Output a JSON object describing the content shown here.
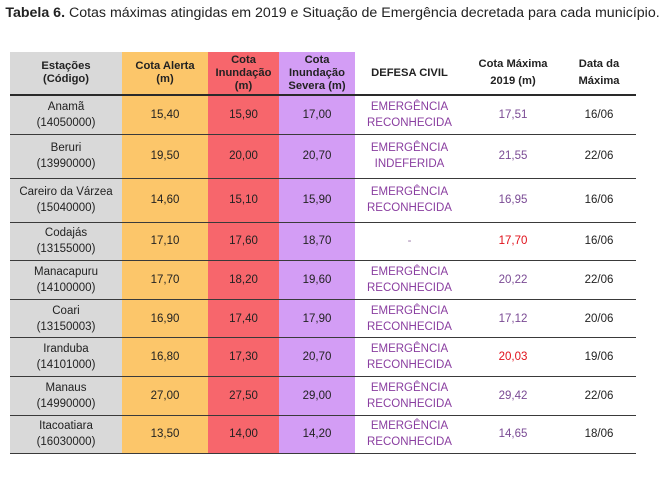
{
  "caption": {
    "label": "Tabela 6.",
    "text": " Cotas máximas atingidas em 2019 e Situação de Emergência decretada para cada município."
  },
  "headers": {
    "estacoes": [
      "Estações",
      "(Código)"
    ],
    "alerta": [
      "Cota Alerta",
      "(m)"
    ],
    "inundacao": [
      "Cota",
      "Inundação",
      "(m)"
    ],
    "severa": [
      "Cota",
      "Inundação",
      "Severa (m)"
    ],
    "defesa": "DEFESA CIVIL",
    "maxima": [
      "Cota Máxima",
      "2019 (m)"
    ],
    "data": [
      "Data da",
      "Máxima"
    ]
  },
  "colors": {
    "estacoes_bg": "#d9d9d9",
    "alerta_bg": "#fcc66a",
    "inundacao_bg": "#f7666c",
    "severa_bg": "#d39df5",
    "defesa_text": "#8a3ea0",
    "max_over_threshold": "#e0101a"
  },
  "rows": [
    {
      "nome": "Anamã",
      "codigo": "(14050000)",
      "alerta": "15,40",
      "inundacao": "15,90",
      "severa": "17,00",
      "defesa": [
        "EMERGÊNCIA",
        "RECONHECIDA"
      ],
      "maxima": "17,51",
      "maxima_red": false,
      "data": "16/06"
    },
    {
      "nome": "Beruri",
      "codigo": "(13990000)",
      "alerta": "19,50",
      "inundacao": "20,00",
      "severa": "20,70",
      "defesa": [
        "EMERGÊNCIA",
        "INDEFERIDA"
      ],
      "maxima": "21,55",
      "maxima_red": false,
      "data": "22/06"
    },
    {
      "nome": "Careiro da Várzea",
      "codigo": "(15040000)",
      "alerta": "14,60",
      "inundacao": "15,10",
      "severa": "15,90",
      "defesa": [
        "EMERGÊNCIA",
        "RECONHECIDA"
      ],
      "maxima": "16,95",
      "maxima_red": false,
      "data": "16/06"
    },
    {
      "nome": "Codajás",
      "codigo": "(13155000)",
      "alerta": "17,10",
      "inundacao": "17,60",
      "severa": "18,70",
      "defesa": [
        "-"
      ],
      "maxima": "17,70",
      "maxima_red": true,
      "data": "16/06"
    },
    {
      "nome": "Manacapuru",
      "codigo": "(14100000)",
      "alerta": "17,70",
      "inundacao": "18,20",
      "severa": "19,60",
      "defesa": [
        "EMERGÊNCIA",
        "RECONHECIDA"
      ],
      "maxima": "20,22",
      "maxima_red": false,
      "data": "22/06"
    },
    {
      "nome": "Coari",
      "codigo": "(13150003)",
      "alerta": "16,90",
      "inundacao": "17,40",
      "severa": "17,90",
      "defesa": [
        "EMERGÊNCIA",
        "RECONHECIDA"
      ],
      "maxima": "17,12",
      "maxima_red": false,
      "data": "20/06"
    },
    {
      "nome": "Iranduba",
      "codigo": "(14101000)",
      "alerta": "16,80",
      "inundacao": "17,30",
      "severa": "20,70",
      "defesa": [
        "EMERGÊNCIA",
        "RECONHECIDA"
      ],
      "maxima": "20,03",
      "maxima_red": true,
      "data": "19/06"
    },
    {
      "nome": "Manaus",
      "codigo": "(14990000)",
      "alerta": "27,00",
      "inundacao": "27,50",
      "severa": "29,00",
      "defesa": [
        "EMERGÊNCIA",
        "RECONHECIDA"
      ],
      "maxima": "29,42",
      "maxima_red": false,
      "data": "22/06"
    },
    {
      "nome": "Itacoatiara",
      "codigo": "(16030000)",
      "alerta": "13,50",
      "inundacao": "14,00",
      "severa": "14,20",
      "defesa": [
        "EMERGÊNCIA",
        "RECONHECIDA"
      ],
      "maxima": "14,65",
      "maxima_red": false,
      "data": "18/06"
    }
  ]
}
